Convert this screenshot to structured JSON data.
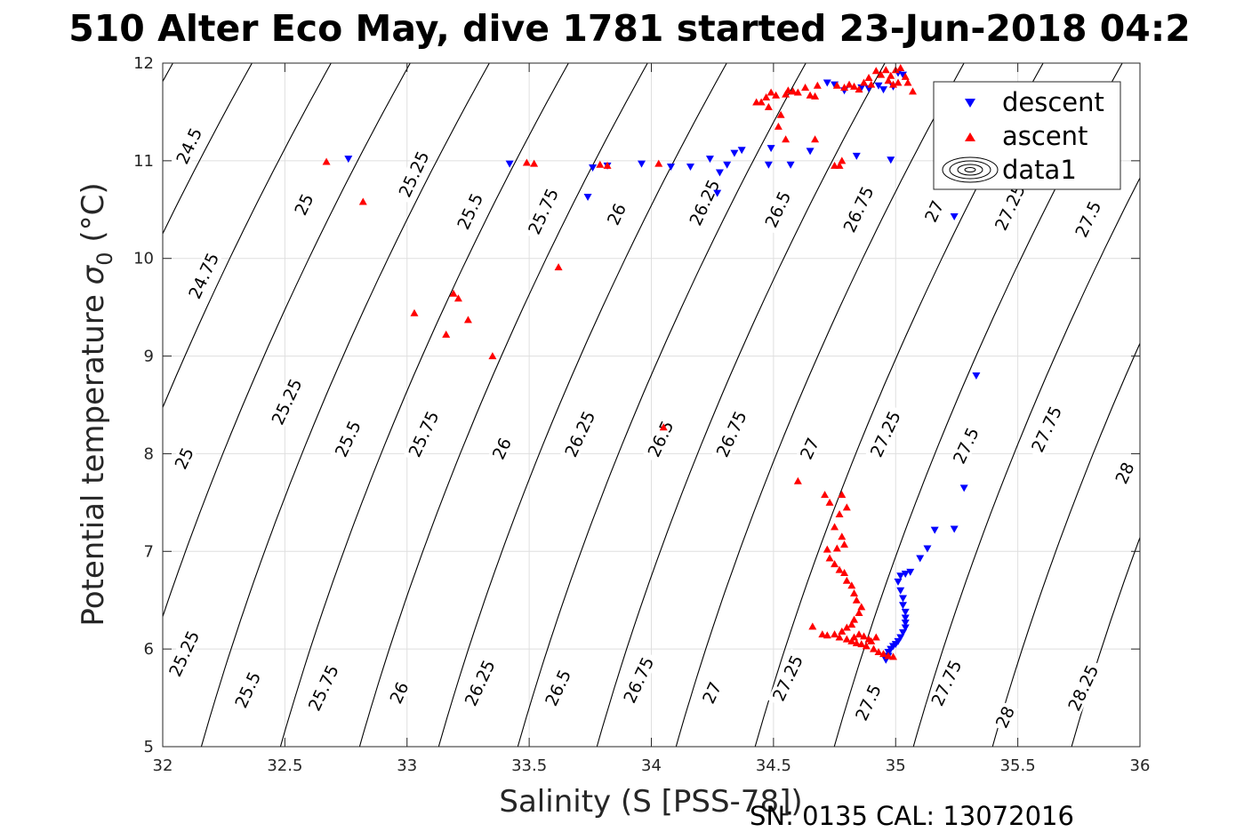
{
  "title": "510 Alter Eco May, dive 1781 started 23-Jun-2018 04:2",
  "footer": "SN: 0135  CAL: 13072016",
  "chart_data": {
    "type": "scatter",
    "xlabel": "Salinity (S [PSS-78])",
    "ylabel_main": "Potential temperature ",
    "ylabel_symbol": "σ",
    "ylabel_sub": "0",
    "ylabel_unit": " (°C)",
    "xlim": [
      32,
      36
    ],
    "ylim": [
      5,
      12
    ],
    "xticks": [
      32,
      32.5,
      33,
      33.5,
      34,
      34.5,
      35,
      35.5,
      36
    ],
    "yticks": [
      5,
      6,
      7,
      8,
      9,
      10,
      11,
      12
    ],
    "grid": true,
    "legend_position": "top-right",
    "colors": {
      "descent": "#0000ff",
      "ascent": "#ff0000",
      "contour": "#000000"
    },
    "series": [
      {
        "name": "descent",
        "marker": "triangle-down",
        "color": "#0000ff",
        "points": [
          [
            32.76,
            11.02
          ],
          [
            33.42,
            10.97
          ],
          [
            33.74,
            10.63
          ],
          [
            33.76,
            10.93
          ],
          [
            33.82,
            10.95
          ],
          [
            33.96,
            10.97
          ],
          [
            34.08,
            10.94
          ],
          [
            34.16,
            10.94
          ],
          [
            34.24,
            11.02
          ],
          [
            34.27,
            10.67
          ],
          [
            34.28,
            10.88
          ],
          [
            34.31,
            10.96
          ],
          [
            34.34,
            11.08
          ],
          [
            34.37,
            11.11
          ],
          [
            34.48,
            10.96
          ],
          [
            34.49,
            11.13
          ],
          [
            34.57,
            10.96
          ],
          [
            34.65,
            11.1
          ],
          [
            34.72,
            11.8
          ],
          [
            34.75,
            11.78
          ],
          [
            34.79,
            11.72
          ],
          [
            34.84,
            11.05
          ],
          [
            34.86,
            11.75
          ],
          [
            34.89,
            11.74
          ],
          [
            34.93,
            11.77
          ],
          [
            34.95,
            11.73
          ],
          [
            34.98,
            11.01
          ],
          [
            34.99,
            11.76
          ],
          [
            35.01,
            11.9
          ],
          [
            35.03,
            11.88
          ],
          [
            35.24,
            10.43
          ],
          [
            35.33,
            8.8
          ],
          [
            35.28,
            7.65
          ],
          [
            35.24,
            7.23
          ],
          [
            35.16,
            7.22
          ],
          [
            35.13,
            7.03
          ],
          [
            35.1,
            6.93
          ],
          [
            35.06,
            6.79
          ],
          [
            35.04,
            6.77
          ],
          [
            35.02,
            6.75
          ],
          [
            35.01,
            6.69
          ],
          [
            35.02,
            6.6
          ],
          [
            35.03,
            6.52
          ],
          [
            35.03,
            6.45
          ],
          [
            35.04,
            6.38
          ],
          [
            35.04,
            6.32
          ],
          [
            35.04,
            6.27
          ],
          [
            35.04,
            6.22
          ],
          [
            35.03,
            6.17
          ],
          [
            35.02,
            6.12
          ],
          [
            35.01,
            6.08
          ],
          [
            35.0,
            6.05
          ],
          [
            34.99,
            6.03
          ],
          [
            34.98,
            6.0
          ],
          [
            34.97,
            5.97
          ],
          [
            34.97,
            5.93
          ],
          [
            34.96,
            5.89
          ]
        ]
      },
      {
        "name": "ascent",
        "marker": "triangle-up",
        "color": "#ff0000",
        "points": [
          [
            32.67,
            10.99
          ],
          [
            32.82,
            10.58
          ],
          [
            33.03,
            9.44
          ],
          [
            33.16,
            9.22
          ],
          [
            33.19,
            9.64
          ],
          [
            33.21,
            9.59
          ],
          [
            33.25,
            9.37
          ],
          [
            33.35,
            9.0
          ],
          [
            33.49,
            10.98
          ],
          [
            33.52,
            10.97
          ],
          [
            33.62,
            9.91
          ],
          [
            33.79,
            10.96
          ],
          [
            33.82,
            10.95
          ],
          [
            34.03,
            10.97
          ],
          [
            34.05,
            8.27
          ],
          [
            34.43,
            11.6
          ],
          [
            34.45,
            11.6
          ],
          [
            34.47,
            11.65
          ],
          [
            34.48,
            11.55
          ],
          [
            34.49,
            11.7
          ],
          [
            34.51,
            11.67
          ],
          [
            34.53,
            11.47
          ],
          [
            34.55,
            11.68
          ],
          [
            34.56,
            11.72
          ],
          [
            34.58,
            11.71
          ],
          [
            34.6,
            11.7
          ],
          [
            34.63,
            11.75
          ],
          [
            34.65,
            11.67
          ],
          [
            34.67,
            11.66
          ],
          [
            34.68,
            11.77
          ],
          [
            34.52,
            11.35
          ],
          [
            34.55,
            11.22
          ],
          [
            34.67,
            11.22
          ],
          [
            34.75,
            10.95
          ],
          [
            34.77,
            10.95
          ],
          [
            34.78,
            11.0
          ],
          [
            34.6,
            7.72
          ],
          [
            34.66,
            6.23
          ],
          [
            34.76,
            11.77
          ],
          [
            34.79,
            11.75
          ],
          [
            34.81,
            11.78
          ],
          [
            34.83,
            11.76
          ],
          [
            34.85,
            11.73
          ],
          [
            34.87,
            11.8
          ],
          [
            34.89,
            11.85
          ],
          [
            34.9,
            11.78
          ],
          [
            34.92,
            11.92
          ],
          [
            34.94,
            11.88
          ],
          [
            34.96,
            11.93
          ],
          [
            34.98,
            11.87
          ],
          [
            35.0,
            11.93
          ],
          [
            35.02,
            11.95
          ],
          [
            35.04,
            11.86
          ],
          [
            35.05,
            11.8
          ],
          [
            35.07,
            11.71
          ],
          [
            34.97,
            11.82
          ],
          [
            34.99,
            11.78
          ],
          [
            35.01,
            11.8
          ],
          [
            34.71,
            7.58
          ],
          [
            34.73,
            7.5
          ],
          [
            34.78,
            7.58
          ],
          [
            34.8,
            7.45
          ],
          [
            34.77,
            7.38
          ],
          [
            34.75,
            7.25
          ],
          [
            34.78,
            7.15
          ],
          [
            34.79,
            7.07
          ],
          [
            34.76,
            7.03
          ],
          [
            34.72,
            7.02
          ],
          [
            34.73,
            6.93
          ],
          [
            34.75,
            6.87
          ],
          [
            34.77,
            6.81
          ],
          [
            34.79,
            6.78
          ],
          [
            34.8,
            6.7
          ],
          [
            34.82,
            6.65
          ],
          [
            34.83,
            6.57
          ],
          [
            34.84,
            6.5
          ],
          [
            34.86,
            6.43
          ],
          [
            34.85,
            6.37
          ],
          [
            34.83,
            6.3
          ],
          [
            34.82,
            6.25
          ],
          [
            34.8,
            6.22
          ],
          [
            34.78,
            6.18
          ],
          [
            34.75,
            6.15
          ],
          [
            34.72,
            6.14
          ],
          [
            34.7,
            6.15
          ],
          [
            34.77,
            6.12
          ],
          [
            34.8,
            6.1
          ],
          [
            34.82,
            6.08
          ],
          [
            34.84,
            6.06
          ],
          [
            34.86,
            6.05
          ],
          [
            34.88,
            6.03
          ],
          [
            34.89,
            6.1
          ],
          [
            34.87,
            6.13
          ],
          [
            34.85,
            6.15
          ],
          [
            34.83,
            6.12
          ],
          [
            34.91,
            6.0
          ],
          [
            34.93,
            5.97
          ],
          [
            34.95,
            5.95
          ],
          [
            34.97,
            5.93
          ],
          [
            34.99,
            5.92
          ],
          [
            34.9,
            6.08
          ],
          [
            34.92,
            6.12
          ]
        ]
      },
      {
        "name": "data1",
        "marker": "contour",
        "color": "#000000",
        "isopycnals": [
          24.5,
          24.75,
          25,
          25.25,
          25.5,
          25.75,
          26,
          26.25,
          26.5,
          26.75,
          27,
          27.25,
          27.5,
          27.75,
          28,
          28.25
        ]
      }
    ],
    "contour_labels": [
      {
        "text": "24.5",
        "x": 32.11,
        "y": 11.15
      },
      {
        "text": "24.75",
        "x": 32.17,
        "y": 9.82
      },
      {
        "text": "25",
        "x": 32.58,
        "y": 10.55
      },
      {
        "text": "25",
        "x": 32.09,
        "y": 7.95
      },
      {
        "text": "25.25",
        "x": 33.03,
        "y": 10.86
      },
      {
        "text": "25.25",
        "x": 32.51,
        "y": 8.53
      },
      {
        "text": "25.25",
        "x": 32.09,
        "y": 5.95
      },
      {
        "text": "25.5",
        "x": 33.26,
        "y": 10.48
      },
      {
        "text": "25.5",
        "x": 32.76,
        "y": 8.15
      },
      {
        "text": "25.5",
        "x": 32.35,
        "y": 5.58
      },
      {
        "text": "25.75",
        "x": 33.56,
        "y": 10.48
      },
      {
        "text": "25.75",
        "x": 33.07,
        "y": 8.2
      },
      {
        "text": "25.75",
        "x": 32.66,
        "y": 5.6
      },
      {
        "text": "26",
        "x": 33.86,
        "y": 10.45
      },
      {
        "text": "26",
        "x": 33.39,
        "y": 8.05
      },
      {
        "text": "26",
        "x": 32.97,
        "y": 5.55
      },
      {
        "text": "26.25",
        "x": 34.22,
        "y": 10.57
      },
      {
        "text": "26.25",
        "x": 33.71,
        "y": 8.2
      },
      {
        "text": "26.25",
        "x": 33.3,
        "y": 5.65
      },
      {
        "text": "26.5",
        "x": 34.52,
        "y": 10.5
      },
      {
        "text": "26.5",
        "x": 34.04,
        "y": 8.15
      },
      {
        "text": "26.5",
        "x": 33.62,
        "y": 5.6
      },
      {
        "text": "26.75",
        "x": 34.85,
        "y": 10.5
      },
      {
        "text": "26.75",
        "x": 34.33,
        "y": 8.2
      },
      {
        "text": "26.75",
        "x": 33.95,
        "y": 5.68
      },
      {
        "text": "27",
        "x": 35.16,
        "y": 10.48
      },
      {
        "text": "27",
        "x": 34.65,
        "y": 8.05
      },
      {
        "text": "27",
        "x": 34.25,
        "y": 5.55
      },
      {
        "text": "27.25",
        "x": 34.96,
        "y": 8.2
      },
      {
        "text": "27.25",
        "x": 34.56,
        "y": 5.7
      },
      {
        "text": "27.25",
        "x": 35.47,
        "y": 10.52
      },
      {
        "text": "27.5",
        "x": 35.29,
        "y": 8.08
      },
      {
        "text": "27.5",
        "x": 34.89,
        "y": 5.45
      },
      {
        "text": "27.5",
        "x": 35.79,
        "y": 10.4
      },
      {
        "text": "27.75",
        "x": 35.62,
        "y": 8.25
      },
      {
        "text": "27.75",
        "x": 35.21,
        "y": 5.65
      },
      {
        "text": "28",
        "x": 35.94,
        "y": 7.8
      },
      {
        "text": "28",
        "x": 35.45,
        "y": 5.3
      },
      {
        "text": "28.25",
        "x": 35.77,
        "y": 5.6
      }
    ]
  }
}
